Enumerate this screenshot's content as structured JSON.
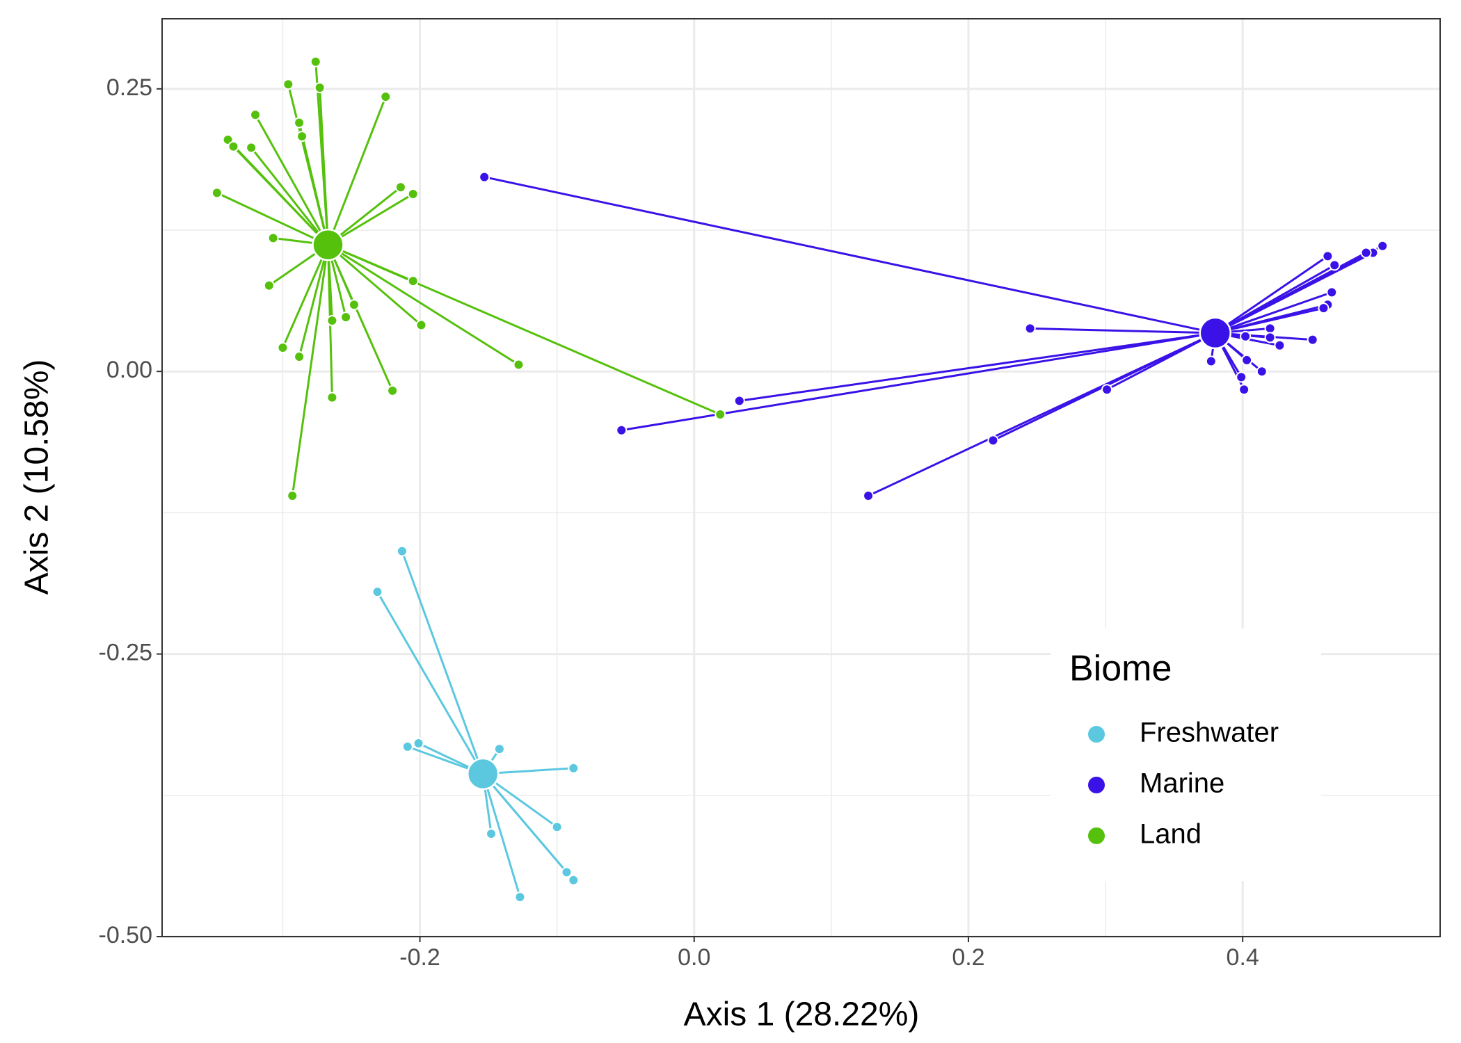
{
  "chart_data": {
    "type": "spider-scatter",
    "x_label": "Axis 1 (28.22%)",
    "y_label": "Axis 2 (10.58%)",
    "xlim": [
      -0.388,
      0.544
    ],
    "ylim": [
      -0.5,
      0.312
    ],
    "xticks": [
      -0.2,
      {
        "value": 0,
        "label": "0.0"
      },
      0.2,
      0.4
    ],
    "yticks": [
      {
        "value": -0.5,
        "label": "-0.50"
      },
      -0.25,
      {
        "value": 0,
        "label": "0.00"
      },
      0.25
    ],
    "x_minor_grid": [
      -0.3,
      -0.1,
      0.1,
      0.3
    ],
    "y_minor_grid": [
      -0.375,
      -0.125,
      0.125
    ],
    "grid": true,
    "legend_title": "Biome",
    "legend_position": "bottom-right",
    "series": [
      {
        "name": "Freshwater",
        "color": "#5bc8e0",
        "centroid": {
          "x": -0.154,
          "y": -0.356
        },
        "x": [
          -0.213,
          -0.231,
          -0.201,
          -0.209,
          -0.142,
          -0.088,
          -0.1,
          -0.148,
          -0.093,
          -0.088,
          -0.127
        ],
        "y": [
          -0.159,
          -0.195,
          -0.329,
          -0.332,
          -0.334,
          -0.351,
          -0.403,
          -0.409,
          -0.443,
          -0.45,
          -0.465
        ]
      },
      {
        "name": "Marine",
        "color": "#3a12e8",
        "centroid": {
          "x": 0.38,
          "y": 0.034
        },
        "x": [
          -0.153,
          0.502,
          0.495,
          0.49,
          0.462,
          0.467,
          0.465,
          0.462,
          0.459,
          0.245,
          0.42,
          0.402,
          0.42,
          0.451,
          0.427,
          0.377,
          0.403,
          0.414,
          0.399,
          0.401,
          0.301,
          0.033,
          -0.053,
          0.218,
          0.127
        ],
        "y": [
          0.172,
          0.111,
          0.105,
          0.105,
          0.102,
          0.094,
          0.07,
          0.059,
          0.056,
          0.038,
          0.038,
          0.031,
          0.03,
          0.028,
          0.023,
          0.009,
          0.01,
          0.0,
          -0.005,
          -0.016,
          -0.016,
          -0.026,
          -0.052,
          -0.061,
          -0.11
        ]
      },
      {
        "name": "Land",
        "color": "#55c10c",
        "centroid": {
          "x": -0.267,
          "y": 0.112
        },
        "x": [
          -0.276,
          -0.273,
          -0.296,
          -0.225,
          -0.32,
          -0.288,
          -0.286,
          -0.34,
          -0.336,
          -0.323,
          -0.348,
          -0.214,
          -0.205,
          -0.307,
          -0.31,
          -0.205,
          -0.248,
          -0.254,
          -0.264,
          -0.199,
          -0.128,
          -0.3,
          -0.288,
          -0.22,
          -0.264,
          0.019,
          -0.293
        ],
        "y": [
          0.274,
          0.251,
          0.254,
          0.243,
          0.227,
          0.22,
          0.208,
          0.205,
          0.199,
          0.198,
          0.158,
          0.163,
          0.157,
          0.118,
          0.076,
          0.08,
          0.059,
          0.048,
          0.045,
          0.041,
          0.006,
          0.021,
          0.013,
          -0.017,
          -0.023,
          -0.038,
          -0.11
        ]
      }
    ]
  }
}
